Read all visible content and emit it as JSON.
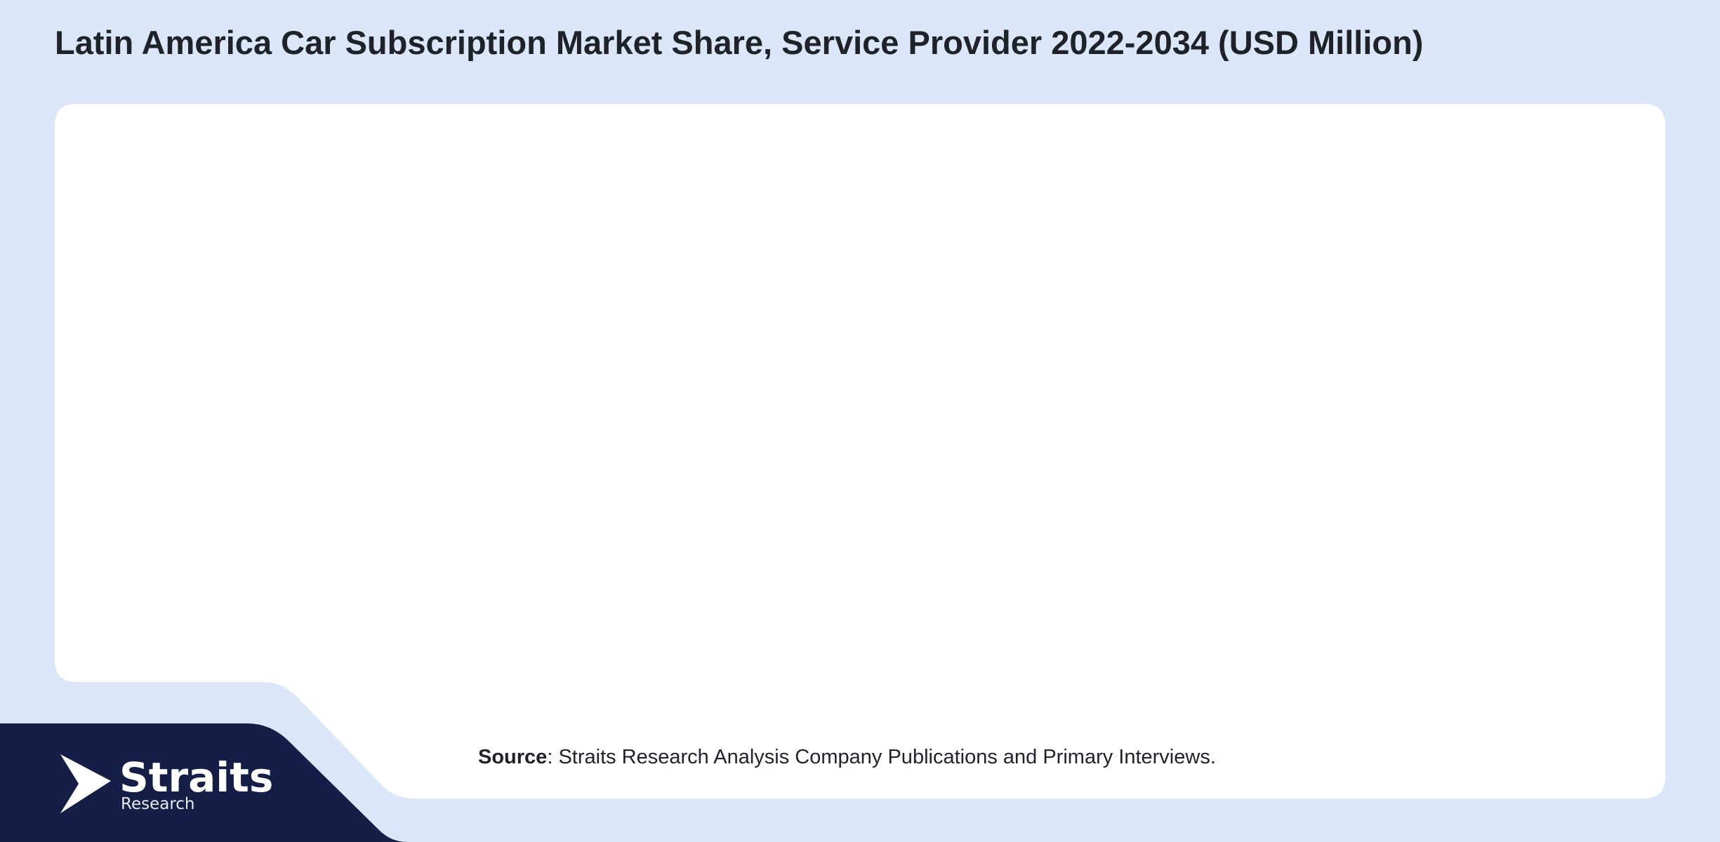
{
  "header": {
    "title": "Latin America Car Subscription Market Share, Service Provider 2022-2034 (USD Million)"
  },
  "source": {
    "label": "Source",
    "text": ": Straits Research Analysis Company Publications and Primary Interviews."
  },
  "logo": {
    "name": "Straits",
    "tagline": "Research"
  }
}
